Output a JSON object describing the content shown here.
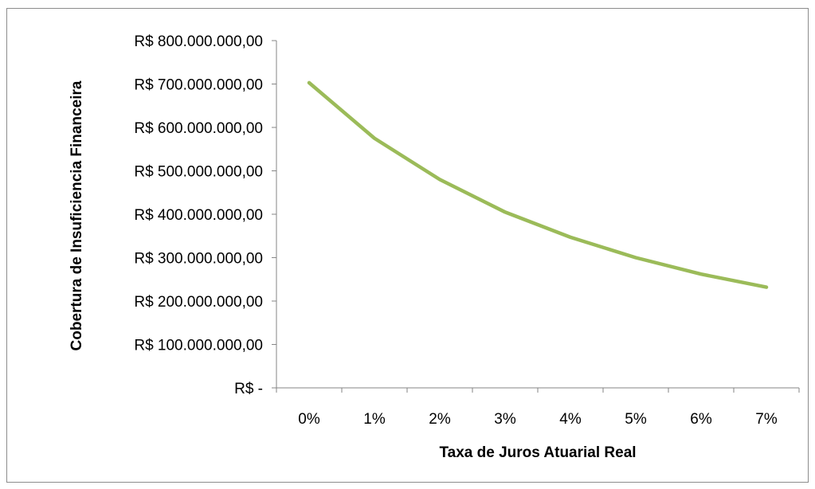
{
  "chart_data": {
    "type": "line",
    "title": "",
    "xlabel": "Taxa de Juros Atuarial Real",
    "ylabel": "Cobertura de Insuficiencia Financeira",
    "categories": [
      "0%",
      "1%",
      "2%",
      "3%",
      "4%",
      "5%",
      "6%",
      "7%"
    ],
    "series": [
      {
        "values": [
          703000000,
          575000000,
          480000000,
          405000000,
          347000000,
          300000000,
          262000000,
          232000000
        ],
        "color": "#9bbb59"
      }
    ],
    "ylim": [
      0,
      800000000
    ],
    "yticks": [
      0,
      100000000,
      200000000,
      300000000,
      400000000,
      500000000,
      600000000,
      700000000,
      800000000
    ],
    "ytick_labels": [
      "R$ -",
      "R$ 100.000.000,00",
      "R$ 200.000.000,00",
      "R$ 300.000.000,00",
      "R$ 400.000.000,00",
      "R$ 500.000.000,00",
      "R$ 600.000.000,00",
      "R$ 700.000.000,00",
      "R$ 800.000.000,00"
    ],
    "grid": false,
    "legend": "none"
  }
}
